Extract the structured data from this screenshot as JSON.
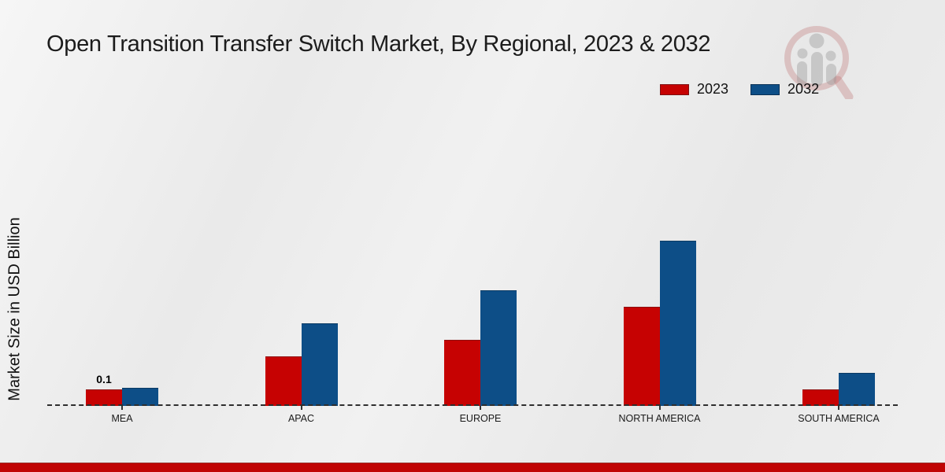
{
  "title": "Open Transition Transfer Switch Market, By Regional, 2023 & 2032",
  "y_axis_label": "Market Size in USD Billion",
  "legend": {
    "position": "top-right",
    "items": [
      {
        "label": "2023",
        "color": "#c60202",
        "edge": "#7d1113"
      },
      {
        "label": "2032",
        "color": "#0d4e87",
        "edge": "#0a3156"
      }
    ]
  },
  "chart_data": {
    "type": "bar",
    "title": "Open Transition Transfer Switch Market, By Regional, 2023 & 2032",
    "categories": [
      "MEA",
      "APAC",
      "EUROPE",
      "NORTH AMERICA",
      "SOUTH AMERICA"
    ],
    "series": [
      {
        "name": "2023",
        "color": "#c60202",
        "edge": "#8e0f0f",
        "values": [
          0.1,
          0.3,
          0.4,
          0.6,
          0.1
        ],
        "point_labels": [
          "0.1",
          "",
          "",
          "",
          ""
        ]
      },
      {
        "name": "2032",
        "color": "#0d4e87",
        "edge": "#0b3a63",
        "values": [
          0.11,
          0.5,
          0.7,
          1.0,
          0.2
        ],
        "point_labels": [
          "",
          "",
          "",
          "",
          ""
        ]
      }
    ],
    "xlabel": "",
    "ylabel": "Market Size in USD Billion",
    "ylim": [
      0,
      1.1
    ],
    "grid": false,
    "y_axis_ticks_visible": false,
    "baseline_style": "dashed",
    "legend_position": "top-right"
  },
  "watermark": {
    "name": "magnifier-people-bars-logo"
  },
  "footer": {
    "bar_color": "#c00404"
  }
}
